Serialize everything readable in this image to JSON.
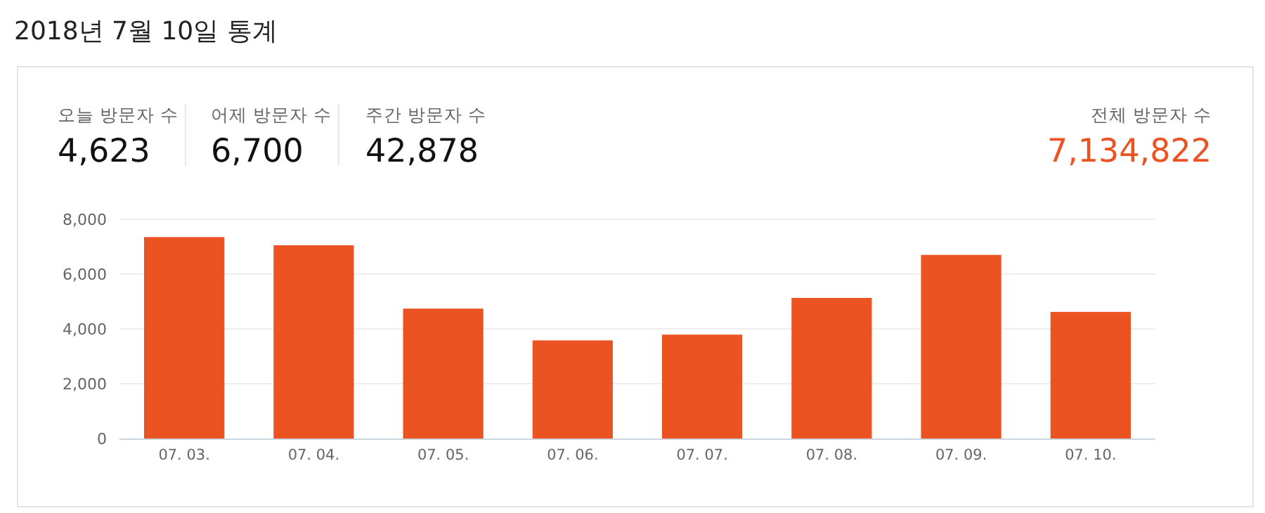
{
  "chart_data": {
    "type": "bar",
    "title": "2018년 7월 10일 통계",
    "annotations": [
      "오늘 방문자 수",
      "4,623",
      "어제 방문자 수",
      "6,700",
      "주간 방문자 수",
      "42,878",
      "전체 방문자 수",
      "7,134,822"
    ],
    "categories": [
      "07. 03.",
      "07. 04.",
      "07. 05.",
      "07. 06.",
      "07. 07.",
      "07. 08.",
      "07. 09.",
      "07. 10."
    ],
    "values": [
      7350,
      7050,
      4740,
      3580,
      3790,
      5130,
      6700,
      4620
    ],
    "color": "#ec5322",
    "ylim": [
      0,
      8000
    ],
    "yticks": [
      {
        "value": 0,
        "label": "0"
      },
      {
        "value": 2000,
        "label": "2,000"
      },
      {
        "value": 4000,
        "label": "4,000"
      },
      {
        "value": 6000,
        "label": "6,000"
      },
      {
        "value": 8000,
        "label": "8,000"
      }
    ],
    "grid": "y"
  }
}
